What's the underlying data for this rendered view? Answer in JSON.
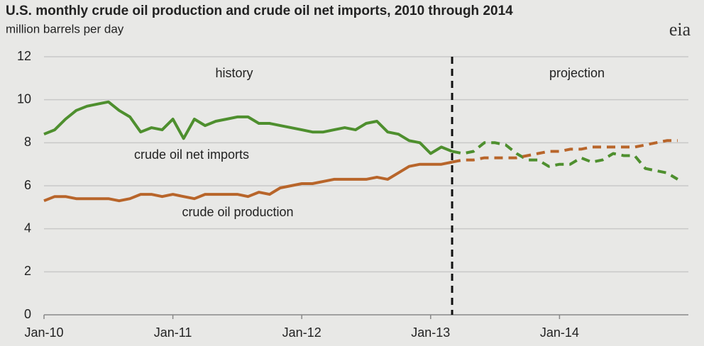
{
  "chart_data": {
    "type": "line",
    "title": "U.S. monthly crude oil production and crude oil net imports, 2010 through 2014",
    "subtitle": "million barrels per day",
    "logo": "eia",
    "annotations": [
      "history",
      "projection"
    ],
    "categories": [
      "Jan-10",
      null,
      null,
      null,
      null,
      null,
      null,
      null,
      null,
      null,
      null,
      null,
      "Jan-11",
      null,
      null,
      null,
      null,
      null,
      null,
      null,
      null,
      null,
      null,
      null,
      "Jan-12",
      null,
      null,
      null,
      null,
      null,
      null,
      null,
      null,
      null,
      null,
      null,
      "Jan-13",
      null,
      null,
      null,
      null,
      null,
      null,
      null,
      null,
      null,
      null,
      null,
      "Jan-14",
      null,
      null,
      null,
      null,
      null,
      null,
      null,
      null,
      null,
      null,
      null
    ],
    "ylim": [
      0,
      12
    ],
    "yticks": [
      0,
      2,
      4,
      6,
      8,
      10,
      12
    ],
    "grid": true,
    "series": [
      {
        "name": "crude oil net imports",
        "color": "#4e8f2e",
        "values": [
          8.4,
          8.6,
          9.1,
          9.5,
          9.7,
          9.8,
          9.9,
          9.5,
          9.2,
          8.5,
          8.7,
          8.6,
          9.1,
          8.2,
          9.1,
          8.8,
          9.0,
          9.1,
          9.2,
          9.2,
          8.9,
          8.9,
          8.8,
          8.7,
          8.6,
          8.5,
          8.5,
          8.6,
          8.7,
          8.6,
          8.9,
          9.0,
          8.5,
          8.4,
          8.1,
          8.0,
          7.5,
          7.8,
          7.6,
          null,
          null,
          null,
          null,
          null,
          null,
          null,
          null,
          null,
          null,
          null,
          null,
          null,
          null,
          null,
          null,
          null,
          null,
          null,
          null,
          null
        ],
        "projection": [
          null,
          null,
          null,
          null,
          null,
          null,
          null,
          null,
          null,
          null,
          null,
          null,
          null,
          null,
          null,
          null,
          null,
          null,
          null,
          null,
          null,
          null,
          null,
          null,
          null,
          null,
          null,
          null,
          null,
          null,
          null,
          null,
          null,
          null,
          null,
          null,
          null,
          null,
          7.6,
          7.5,
          7.6,
          8.0,
          8.0,
          7.9,
          7.5,
          7.2,
          7.2,
          6.9,
          7.0,
          7.0,
          7.3,
          7.1,
          7.2,
          7.5,
          7.4,
          7.4,
          6.8,
          6.7,
          6.6,
          6.3
        ]
      },
      {
        "name": "crude oil production",
        "color": "#b8652a",
        "values": [
          5.3,
          5.5,
          5.5,
          5.4,
          5.4,
          5.4,
          5.4,
          5.3,
          5.4,
          5.6,
          5.6,
          5.5,
          5.6,
          5.5,
          5.4,
          5.6,
          5.6,
          5.6,
          5.6,
          5.5,
          5.7,
          5.6,
          5.9,
          6.0,
          6.1,
          6.1,
          6.2,
          6.3,
          6.3,
          6.3,
          6.3,
          6.4,
          6.3,
          6.6,
          6.9,
          7.0,
          7.0,
          7.0,
          7.1,
          null,
          null,
          null,
          null,
          null,
          null,
          null,
          null,
          null,
          null,
          null,
          null,
          null,
          null,
          null,
          null,
          null,
          null,
          null,
          null,
          null
        ],
        "projection": [
          null,
          null,
          null,
          null,
          null,
          null,
          null,
          null,
          null,
          null,
          null,
          null,
          null,
          null,
          null,
          null,
          null,
          null,
          null,
          null,
          null,
          null,
          null,
          null,
          null,
          null,
          null,
          null,
          null,
          null,
          null,
          null,
          null,
          null,
          null,
          null,
          null,
          null,
          7.1,
          7.2,
          7.2,
          7.3,
          7.3,
          7.3,
          7.3,
          7.4,
          7.5,
          7.6,
          7.6,
          7.7,
          7.7,
          7.8,
          7.8,
          7.8,
          7.8,
          7.8,
          7.9,
          8.0,
          8.1,
          8.1
        ]
      }
    ]
  }
}
